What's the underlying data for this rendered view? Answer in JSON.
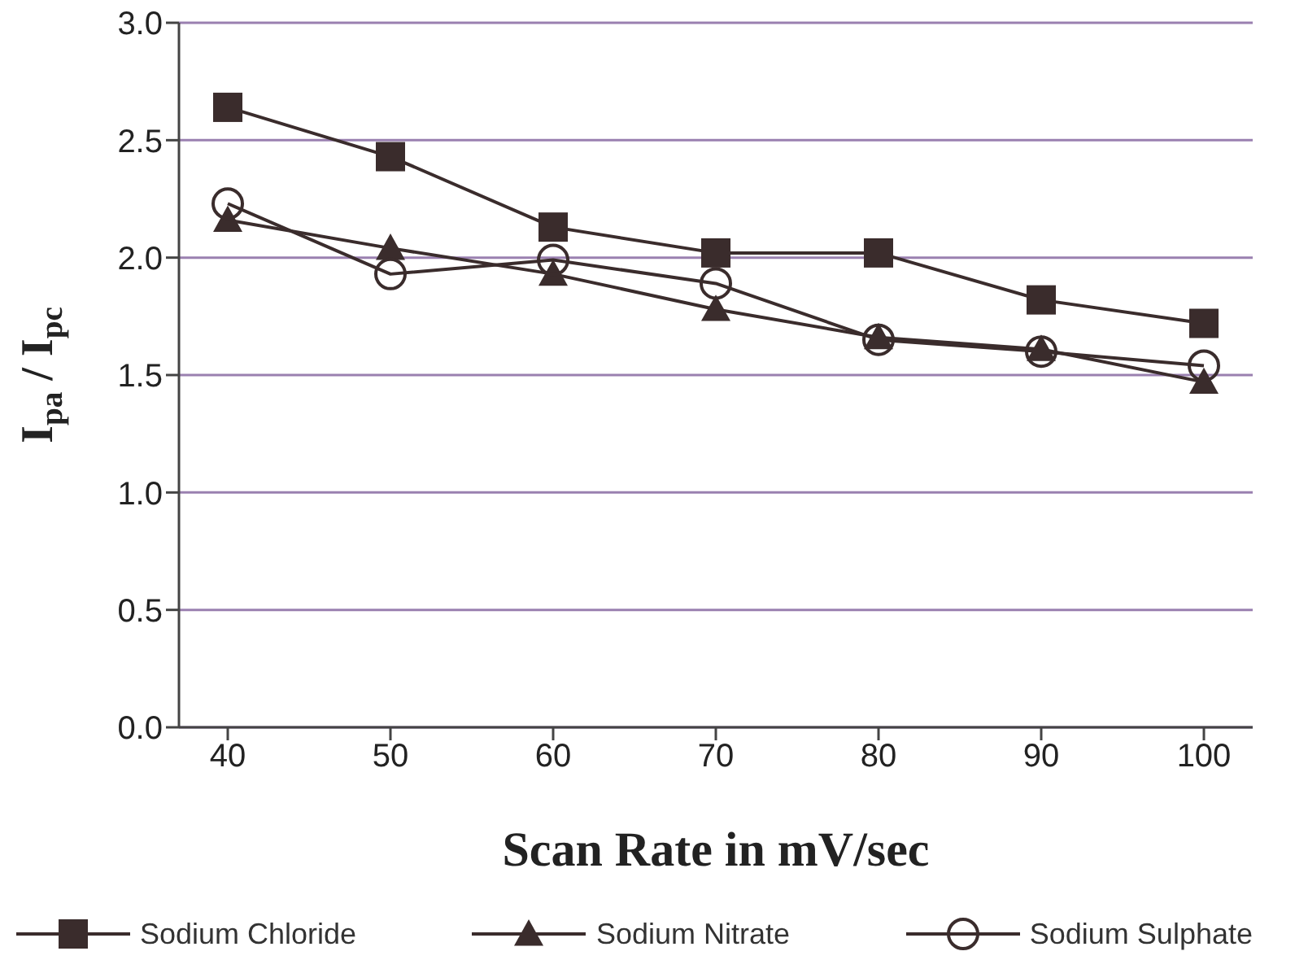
{
  "chart_data": {
    "type": "line",
    "xlabel": "Scan Rate in mV/sec",
    "ylabel": "I$_{pa}$ / I$_{pc}$",
    "x": [
      40,
      50,
      60,
      70,
      80,
      90,
      100
    ],
    "series": [
      {
        "name": "Sodium Chloride",
        "color": "#3a2c2c",
        "marker": "square",
        "values": [
          2.64,
          2.43,
          2.13,
          2.02,
          2.02,
          1.82,
          1.72
        ]
      },
      {
        "name": "Sodium Nitrate",
        "color": "#3a2c2c",
        "marker": "triangle",
        "values": [
          2.16,
          2.04,
          1.93,
          1.78,
          1.66,
          1.61,
          1.47
        ]
      },
      {
        "name": "Sodium Sulphate",
        "color": "#3a2c2c",
        "marker": "circle",
        "values": [
          2.23,
          1.93,
          1.99,
          1.89,
          1.65,
          1.6,
          1.54
        ]
      }
    ],
    "xlim": [
      37,
      103
    ],
    "xticks": [
      40,
      50,
      60,
      70,
      80,
      90,
      100
    ],
    "ylim": [
      0,
      3
    ],
    "yticks": [
      {
        "value": 0,
        "label": "0.0"
      },
      0.5,
      {
        "value": 1,
        "label": "1.0"
      },
      1.5,
      {
        "value": 2,
        "label": "2.0"
      },
      2.5,
      {
        "value": 3,
        "label": "3.0"
      }
    ],
    "grid": "y",
    "legend": "bottom",
    "line_style": "solid"
  }
}
